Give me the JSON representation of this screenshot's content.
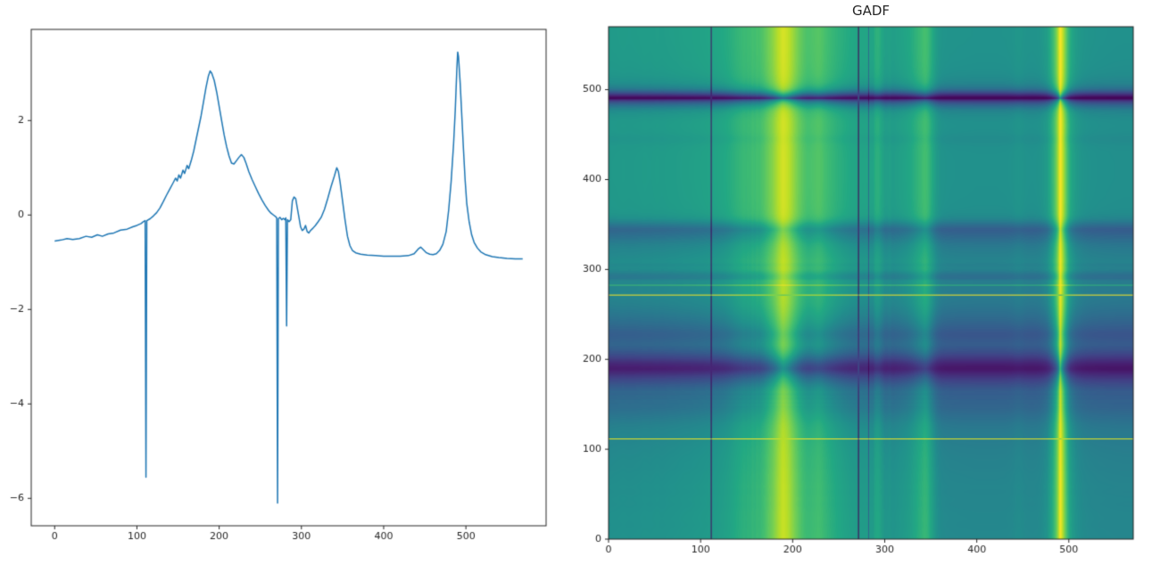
{
  "figure": {
    "background": "#ffffff"
  },
  "chart_data": [
    {
      "type": "line",
      "title": "",
      "xlabel": "",
      "ylabel": "",
      "line_color": "#1f77b4",
      "xlim": [
        -28.5,
        597.5
      ],
      "ylim": [
        -6.58,
        3.93
      ],
      "xticks": [
        0,
        100,
        200,
        300,
        400,
        500
      ],
      "yticks": [
        -6,
        -4,
        -2,
        0,
        2
      ],
      "xticklabels": [
        "0",
        "100",
        "200",
        "300",
        "400",
        "500"
      ],
      "yticklabels": [
        "−6",
        "−4",
        "−2",
        "0",
        "2"
      ],
      "grid": false,
      "points": [
        [
          0,
          -0.55
        ],
        [
          8,
          -0.53
        ],
        [
          15,
          -0.5
        ],
        [
          22,
          -0.52
        ],
        [
          30,
          -0.5
        ],
        [
          38,
          -0.45
        ],
        [
          45,
          -0.47
        ],
        [
          52,
          -0.42
        ],
        [
          58,
          -0.45
        ],
        [
          65,
          -0.4
        ],
        [
          72,
          -0.38
        ],
        [
          80,
          -0.32
        ],
        [
          88,
          -0.3
        ],
        [
          95,
          -0.25
        ],
        [
          100,
          -0.22
        ],
        [
          105,
          -0.18
        ],
        [
          108,
          -0.14
        ],
        [
          110,
          -0.12
        ],
        [
          111,
          -5.55
        ],
        [
          112,
          -0.12
        ],
        [
          116,
          -0.08
        ],
        [
          120,
          -0.02
        ],
        [
          124,
          0.05
        ],
        [
          128,
          0.15
        ],
        [
          132,
          0.28
        ],
        [
          136,
          0.42
        ],
        [
          140,
          0.55
        ],
        [
          144,
          0.68
        ],
        [
          147,
          0.78
        ],
        [
          149,
          0.72
        ],
        [
          151,
          0.85
        ],
        [
          153,
          0.78
        ],
        [
          156,
          0.95
        ],
        [
          158,
          0.88
        ],
        [
          161,
          1.05
        ],
        [
          163,
          0.98
        ],
        [
          166,
          1.15
        ],
        [
          169,
          1.35
        ],
        [
          172,
          1.6
        ],
        [
          175,
          1.85
        ],
        [
          178,
          2.1
        ],
        [
          181,
          2.4
        ],
        [
          184,
          2.7
        ],
        [
          187,
          2.95
        ],
        [
          189,
          3.05
        ],
        [
          191,
          3.0
        ],
        [
          194,
          2.85
        ],
        [
          197,
          2.6
        ],
        [
          200,
          2.3
        ],
        [
          203,
          2.0
        ],
        [
          206,
          1.7
        ],
        [
          209,
          1.45
        ],
        [
          212,
          1.25
        ],
        [
          215,
          1.1
        ],
        [
          218,
          1.08
        ],
        [
          221,
          1.15
        ],
        [
          224,
          1.22
        ],
        [
          227,
          1.28
        ],
        [
          230,
          1.22
        ],
        [
          233,
          1.08
        ],
        [
          236,
          0.92
        ],
        [
          240,
          0.75
        ],
        [
          244,
          0.6
        ],
        [
          248,
          0.45
        ],
        [
          252,
          0.32
        ],
        [
          256,
          0.2
        ],
        [
          260,
          0.1
        ],
        [
          263,
          0.04
        ],
        [
          266,
          0.0
        ],
        [
          269,
          -0.04
        ],
        [
          270,
          -0.06
        ],
        [
          271,
          -6.1
        ],
        [
          272,
          -0.08
        ],
        [
          274,
          -0.05
        ],
        [
          276,
          -0.1
        ],
        [
          278,
          -0.07
        ],
        [
          280,
          -0.1
        ],
        [
          281,
          -0.06
        ],
        [
          282,
          -2.35
        ],
        [
          283,
          -0.1
        ],
        [
          285,
          -0.14
        ],
        [
          287,
          -0.1
        ],
        [
          289,
          0.3
        ],
        [
          291,
          0.38
        ],
        [
          293,
          0.35
        ],
        [
          295,
          0.15
        ],
        [
          297,
          -0.05
        ],
        [
          299,
          -0.25
        ],
        [
          301,
          -0.33
        ],
        [
          303,
          -0.3
        ],
        [
          305,
          -0.22
        ],
        [
          307,
          -0.35
        ],
        [
          309,
          -0.38
        ],
        [
          311,
          -0.33
        ],
        [
          314,
          -0.28
        ],
        [
          317,
          -0.22
        ],
        [
          320,
          -0.15
        ],
        [
          324,
          -0.05
        ],
        [
          328,
          0.12
        ],
        [
          332,
          0.35
        ],
        [
          336,
          0.6
        ],
        [
          340,
          0.82
        ],
        [
          343,
          1.0
        ],
        [
          345,
          0.92
        ],
        [
          347,
          0.7
        ],
        [
          350,
          0.3
        ],
        [
          353,
          -0.1
        ],
        [
          356,
          -0.45
        ],
        [
          359,
          -0.65
        ],
        [
          362,
          -0.75
        ],
        [
          366,
          -0.8
        ],
        [
          372,
          -0.83
        ],
        [
          380,
          -0.85
        ],
        [
          390,
          -0.86
        ],
        [
          400,
          -0.87
        ],
        [
          410,
          -0.87
        ],
        [
          420,
          -0.87
        ],
        [
          430,
          -0.86
        ],
        [
          437,
          -0.82
        ],
        [
          442,
          -0.72
        ],
        [
          445,
          -0.68
        ],
        [
          448,
          -0.73
        ],
        [
          452,
          -0.8
        ],
        [
          456,
          -0.83
        ],
        [
          460,
          -0.84
        ],
        [
          464,
          -0.82
        ],
        [
          468,
          -0.75
        ],
        [
          472,
          -0.62
        ],
        [
          476,
          -0.35
        ],
        [
          479,
          0.1
        ],
        [
          482,
          0.7
        ],
        [
          485,
          1.5
        ],
        [
          487,
          2.2
        ],
        [
          489,
          3.1
        ],
        [
          490,
          3.45
        ],
        [
          491,
          3.35
        ],
        [
          493,
          2.8
        ],
        [
          495,
          2.1
        ],
        [
          497,
          1.4
        ],
        [
          499,
          0.75
        ],
        [
          501,
          0.25
        ],
        [
          504,
          -0.15
        ],
        [
          507,
          -0.42
        ],
        [
          510,
          -0.58
        ],
        [
          514,
          -0.7
        ],
        [
          518,
          -0.78
        ],
        [
          524,
          -0.84
        ],
        [
          532,
          -0.88
        ],
        [
          540,
          -0.9
        ],
        [
          550,
          -0.92
        ],
        [
          560,
          -0.93
        ],
        [
          569,
          -0.93
        ]
      ]
    },
    {
      "type": "heatmap",
      "title": "GADF",
      "transform": "gramian-angular-difference-field",
      "source_series": 0,
      "n": 570,
      "extent": [
        0,
        570,
        0,
        570
      ],
      "value_range": [
        -1,
        1
      ],
      "xticks": [
        0,
        100,
        200,
        300,
        400,
        500
      ],
      "yticks": [
        0,
        100,
        200,
        300,
        400,
        500
      ],
      "xticklabels": [
        "0",
        "100",
        "200",
        "300",
        "400",
        "500"
      ],
      "yticklabels": [
        "0",
        "100",
        "200",
        "300",
        "400",
        "500"
      ],
      "colormap": "viridis",
      "colormap_stops": [
        "#440154",
        "#482475",
        "#414487",
        "#355f8d",
        "#2a788e",
        "#21918c",
        "#22a884",
        "#44bf70",
        "#7ad151",
        "#bddf26",
        "#fde725"
      ]
    }
  ]
}
